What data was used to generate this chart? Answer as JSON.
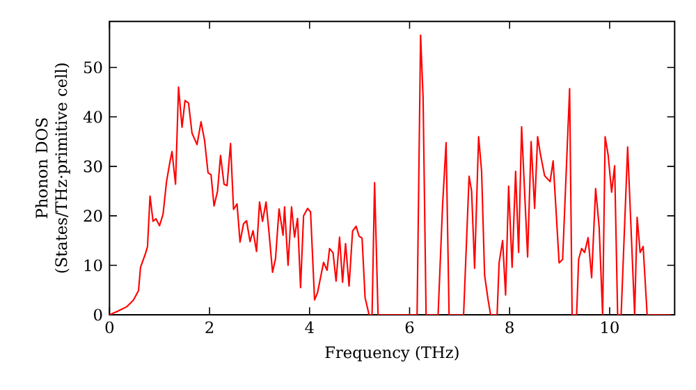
{
  "chart_data": {
    "type": "line",
    "xlabel": "Frequency (THz)",
    "ylabel": "Phonon DOS (States/THz·primitive cell)",
    "color": "#ff0000",
    "xlim": [
      0,
      11.3
    ],
    "ylim": [
      0,
      59.3
    ],
    "xticks": [
      0,
      2,
      4,
      6,
      8,
      10
    ],
    "yticks": [
      0,
      10,
      20,
      30,
      40,
      50
    ],
    "x": [
      0,
      0.16,
      0.34,
      0.48,
      0.58,
      0.62,
      0.72,
      0.76,
      0.81,
      0.87,
      0.93,
      1.0,
      1.07,
      1.14,
      1.21,
      1.25,
      1.32,
      1.38,
      1.45,
      1.51,
      1.58,
      1.65,
      1.75,
      1.83,
      1.9,
      1.97,
      2.03,
      2.09,
      2.16,
      2.22,
      2.29,
      2.35,
      2.42,
      2.48,
      2.55,
      2.61,
      2.68,
      2.74,
      2.81,
      2.87,
      2.94,
      3.0,
      3.06,
      3.13,
      3.19,
      3.26,
      3.32,
      3.39,
      3.47,
      3.5,
      3.57,
      3.64,
      3.7,
      3.76,
      3.82,
      3.88,
      3.96,
      4.02,
      4.1,
      4.16,
      4.28,
      4.35,
      4.4,
      4.47,
      4.53,
      4.6,
      4.66,
      4.72,
      4.79,
      4.86,
      4.93,
      4.99,
      5.05,
      5.11,
      5.19,
      5.25,
      5.3,
      5.37,
      6.15,
      6.22,
      6.27,
      6.33,
      6.57,
      6.66,
      6.73,
      6.79,
      7.08,
      7.19,
      7.24,
      7.3,
      7.38,
      7.44,
      7.5,
      7.57,
      7.62,
      7.75,
      7.79,
      7.86,
      7.92,
      7.98,
      8.05,
      8.12,
      8.18,
      8.24,
      8.36,
      8.43,
      8.5,
      8.56,
      8.61,
      8.7,
      8.81,
      8.87,
      8.99,
      9.06,
      9.2,
      9.25,
      9.34,
      9.38,
      9.44,
      9.5,
      9.57,
      9.64,
      9.72,
      9.79,
      9.86,
      9.91,
      9.97,
      10.04,
      10.1,
      10.16,
      10.23,
      10.36,
      10.5,
      10.55,
      10.61,
      10.67,
      10.75,
      11.22
    ],
    "values": [
      0,
      0.7,
      1.6,
      3,
      4.9,
      9.6,
      12.4,
      13.8,
      24,
      18.9,
      19.4,
      18,
      20.3,
      26.9,
      31,
      33,
      26.4,
      46,
      37.9,
      43.3,
      42.8,
      36.7,
      34.4,
      39,
      35.3,
      28.7,
      28.3,
      22,
      25,
      32.2,
      26.4,
      26.1,
      34.6,
      21.3,
      22.4,
      14.7,
      18.4,
      19,
      14.8,
      17,
      12.8,
      22.8,
      18.9,
      22.8,
      16.6,
      8.6,
      11.4,
      21.4,
      16.1,
      21.8,
      10,
      21.8,
      15.7,
      19.5,
      5.5,
      20,
      21.5,
      20.8,
      3,
      4.5,
      10.6,
      9,
      13.4,
      12.5,
      6.8,
      15.7,
      6.6,
      14.4,
      5.8,
      16.9,
      17.9,
      15.9,
      15.5,
      3.5,
      0,
      0,
      26.7,
      0,
      0,
      56.5,
      44,
      0,
      0,
      22.2,
      34.8,
      0,
      0,
      28,
      25,
      9.4,
      36,
      29,
      8,
      3,
      0,
      0,
      10.5,
      15,
      4,
      26,
      9.6,
      29,
      12.6,
      38,
      11.7,
      35,
      21.5,
      36,
      32.8,
      28.1,
      26.9,
      31.1,
      10.5,
      11.2,
      45.7,
      0,
      0,
      11.2,
      13.4,
      12.6,
      15.6,
      7.5,
      25.5,
      17.8,
      0,
      36,
      32.3,
      24.8,
      30.1,
      0,
      0,
      33.9,
      0,
      19.7,
      12.6,
      13.8,
      0,
      0
    ]
  }
}
